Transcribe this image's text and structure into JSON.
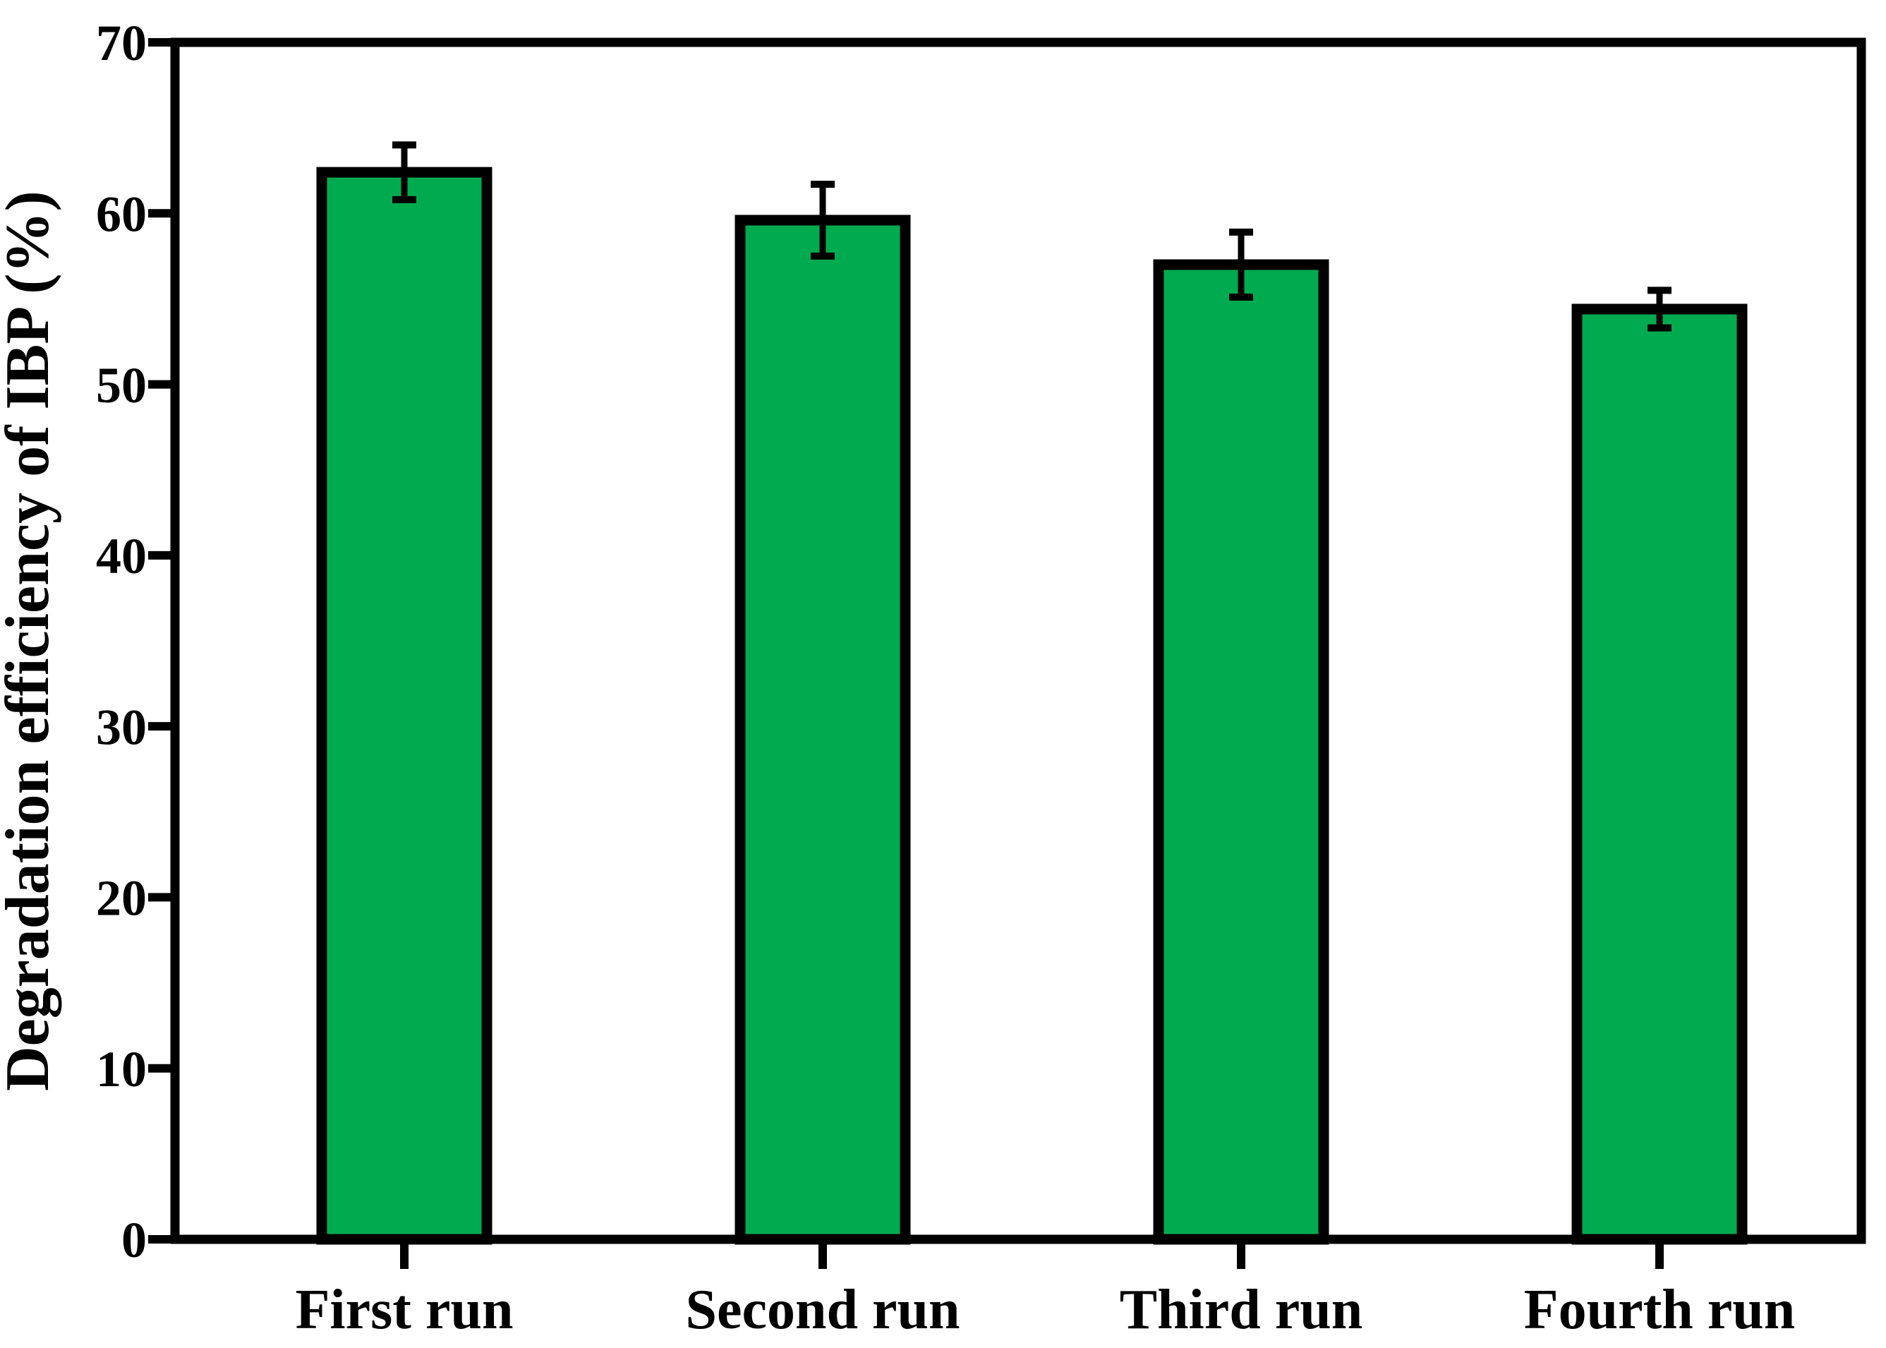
{
  "figure": {
    "background": "#FFFFFF"
  },
  "chart_data": {
    "type": "bar",
    "title": "",
    "ylabel": "Degradation efficiency of IBP (%)",
    "xlabel": "",
    "categories": [
      "First run",
      "Second run",
      "Third run",
      "Fourth run"
    ],
    "values": [
      62.4,
      59.6,
      57.0,
      54.4
    ],
    "error_bars": [
      1.6,
      2.1,
      1.9,
      1.1
    ],
    "ylim": [
      0,
      70
    ],
    "yticks": [
      0,
      10,
      20,
      30,
      40,
      50,
      60,
      70
    ],
    "grid": "off",
    "legend": "none",
    "bar_fill_color": "#00AB50",
    "bar_border_color": "#000000",
    "error_bar_color": "#000000",
    "axis_color": "#000000",
    "tick_label_color": "#000000",
    "background_color": "#FFFFFF"
  }
}
